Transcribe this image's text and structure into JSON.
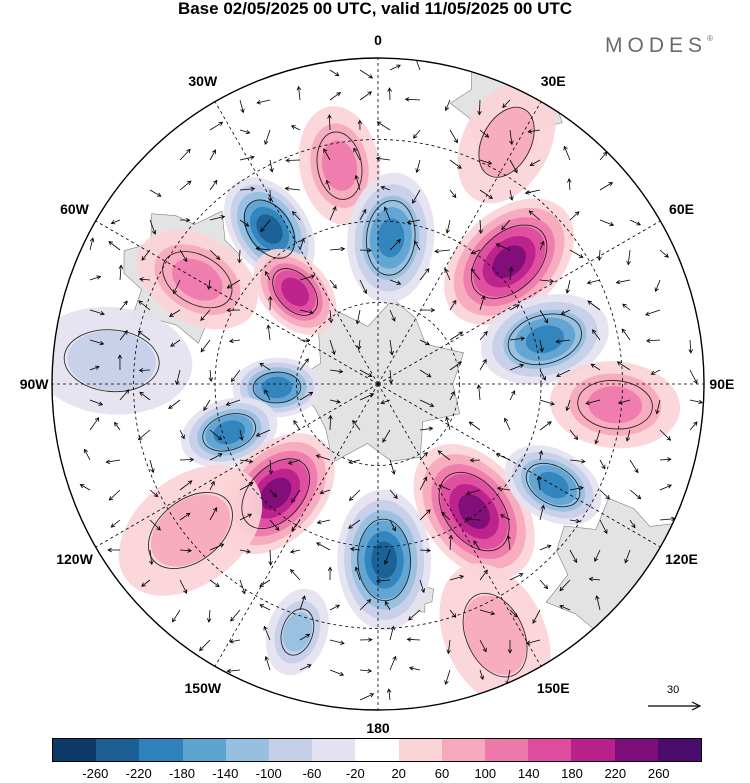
{
  "title": "Base 02/05/2025 00 UTC, valid 11/05/2025 00 UTC",
  "brand": "MODES",
  "brand_mark": "®",
  "projection": "south-polar-stereographic",
  "longitude_labels": [
    {
      "text": "0",
      "bearing": 0
    },
    {
      "text": "30E",
      "bearing": 30
    },
    {
      "text": "60E",
      "bearing": 60
    },
    {
      "text": "90E",
      "bearing": 90
    },
    {
      "text": "120E",
      "bearing": 120
    },
    {
      "text": "150E",
      "bearing": 150
    },
    {
      "text": "180",
      "bearing": 180
    },
    {
      "text": "150W",
      "bearing": 210
    },
    {
      "text": "120W",
      "bearing": 240
    },
    {
      "text": "90W",
      "bearing": 270
    },
    {
      "text": "60W",
      "bearing": 300
    },
    {
      "text": "30W",
      "bearing": 330
    }
  ],
  "reference_vector": {
    "label": "30",
    "icon": "arrow-right-icon"
  },
  "legend": {
    "ticks": [
      "-260",
      "-220",
      "-180",
      "-140",
      "-100",
      "-60",
      "-20",
      "20",
      "60",
      "100",
      "140",
      "180",
      "220",
      "260"
    ],
    "colors": [
      "#0d3a66",
      "#1b5f94",
      "#2f82bb",
      "#5ea4d1",
      "#97bfe0",
      "#c5cfe8",
      "#e4e2f0",
      "#ffffff",
      "#fbd4d8",
      "#f6a8bd",
      "#ee7aac",
      "#dd4c9e",
      "#b8208a",
      "#7d0d78",
      "#4c0c6b"
    ]
  },
  "fill_colors": {
    "land": "#e3e3e3",
    "coast": "#808080",
    "grid": "#000000",
    "vector": "#000000"
  },
  "anomaly_cells": [
    {
      "bearing": 350,
      "dist": 0.68,
      "value": 110,
      "size": 1.0
    },
    {
      "bearing": 325,
      "dist": 0.58,
      "value": -200,
      "size": 0.95
    },
    {
      "bearing": 300,
      "dist": 0.64,
      "value": 100,
      "size": 1.1
    },
    {
      "bearing": 318,
      "dist": 0.38,
      "value": 180,
      "size": 0.8
    },
    {
      "bearing": 5,
      "dist": 0.45,
      "value": -190,
      "size": 1.1
    },
    {
      "bearing": 47,
      "dist": 0.55,
      "value": 200,
      "size": 1.3
    },
    {
      "bearing": 75,
      "dist": 0.53,
      "value": -190,
      "size": 1.1
    },
    {
      "bearing": 95,
      "dist": 0.73,
      "value": 90,
      "size": 1.1
    },
    {
      "bearing": 268,
      "dist": 0.31,
      "value": -160,
      "size": 0.7
    },
    {
      "bearing": 252,
      "dist": 0.48,
      "value": -170,
      "size": 0.8
    },
    {
      "bearing": 223,
      "dist": 0.46,
      "value": 200,
      "size": 1.2
    },
    {
      "bearing": 232,
      "dist": 0.73,
      "value": 60,
      "size": 1.4
    },
    {
      "bearing": 178,
      "dist": 0.54,
      "value": -220,
      "size": 1.2
    },
    {
      "bearing": 143,
      "dist": 0.49,
      "value": 210,
      "size": 1.3
    },
    {
      "bearing": 120,
      "dist": 0.62,
      "value": -160,
      "size": 0.85
    },
    {
      "bearing": 198,
      "dist": 0.8,
      "value": -80,
      "size": 0.7
    },
    {
      "bearing": 155,
      "dist": 0.85,
      "value": 60,
      "size": 1.3
    },
    {
      "bearing": 28,
      "dist": 0.84,
      "value": 60,
      "size": 1.1
    },
    {
      "bearing": 275,
      "dist": 0.82,
      "value": -40,
      "size": 1.4
    }
  ],
  "land_masses": [
    {
      "name": "antarctica",
      "bearing": 0,
      "dist": 0,
      "value": 0.28
    },
    {
      "name": "south-america",
      "bearing": 300,
      "dist": 0.68,
      "value": 0.22
    },
    {
      "name": "africa",
      "bearing": 25,
      "dist": 0.95,
      "value": 0.18
    },
    {
      "name": "australia",
      "bearing": 128,
      "dist": 0.95,
      "value": 0.25
    },
    {
      "name": "new-zealand",
      "bearing": 170,
      "dist": 0.66,
      "value": 0.06
    }
  ]
}
